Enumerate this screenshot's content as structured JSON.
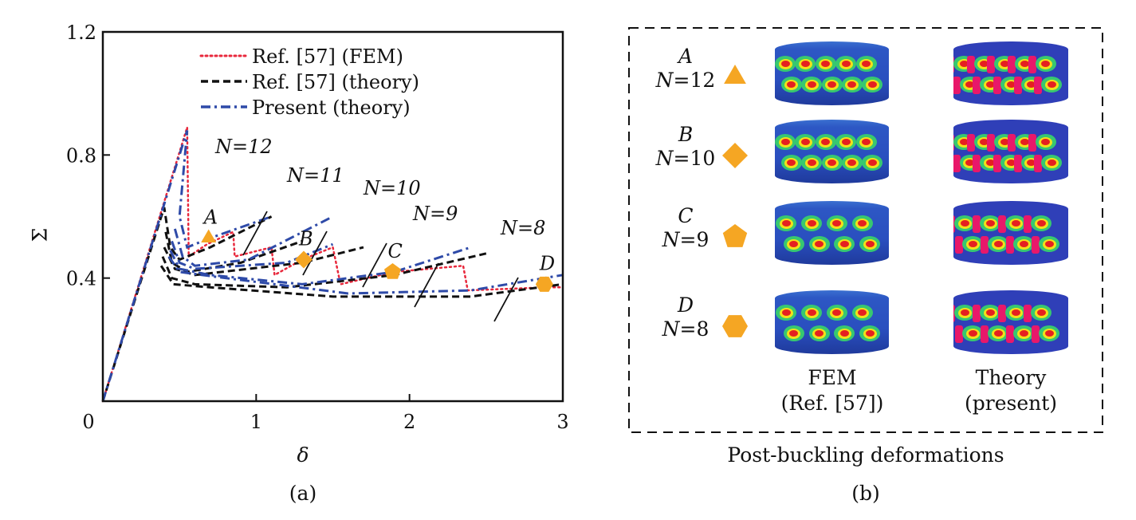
{
  "chart_data": {
    "type": "line",
    "panel_label": "(a)",
    "xlabel": "δ",
    "ylabel": "Σ",
    "xlim": [
      0,
      3
    ],
    "ylim": [
      0,
      1.2
    ],
    "xticks": [
      0,
      1,
      2,
      3
    ],
    "xtick_labels": [
      "0",
      "1",
      "2",
      "3"
    ],
    "yticks": [
      0.4,
      0.8,
      1.2
    ],
    "ytick_labels": [
      "0.4",
      "0.8",
      "1.2"
    ],
    "origin_label": "0",
    "grid": false,
    "legend_position": "top-center",
    "legend": [
      {
        "name": "Ref. [57] (FEM)",
        "color": "#e8283c",
        "style": "dotted"
      },
      {
        "name": "Ref. [57] (theory)",
        "color": "#111111",
        "style": "dashed"
      },
      {
        "name": "Present (theory)",
        "color": "#2e4aa8",
        "style": "dashdot"
      }
    ],
    "series": [
      {
        "name": "Ref. [57] (FEM)",
        "color": "#e8283c",
        "style": "dotted",
        "points": [
          [
            0,
            0
          ],
          [
            0.55,
            0.89
          ],
          [
            0.56,
            0.47
          ],
          [
            0.68,
            0.51
          ],
          [
            0.85,
            0.55
          ],
          [
            0.86,
            0.47
          ],
          [
            1.1,
            0.5
          ],
          [
            1.12,
            0.41
          ],
          [
            1.3,
            0.46
          ],
          [
            1.5,
            0.5
          ],
          [
            1.55,
            0.38
          ],
          [
            1.9,
            0.42
          ],
          [
            2.35,
            0.44
          ],
          [
            2.38,
            0.36
          ],
          [
            2.9,
            0.37
          ],
          [
            3.0,
            0.37
          ]
        ]
      },
      {
        "name": "Ref. [57] (theory) N=12",
        "color": "#111111",
        "style": "dashed",
        "points": [
          [
            0,
            0
          ],
          [
            0.4,
            0.63
          ],
          [
            0.44,
            0.5
          ],
          [
            0.5,
            0.46
          ],
          [
            0.7,
            0.5
          ],
          [
            1.1,
            0.6
          ]
        ]
      },
      {
        "name": "Ref. [57] (theory) N=11",
        "color": "#111111",
        "style": "dashed",
        "points": [
          [
            0.41,
            0.55
          ],
          [
            0.45,
            0.45
          ],
          [
            0.55,
            0.42
          ],
          [
            0.9,
            0.45
          ],
          [
            1.3,
            0.52
          ]
        ]
      },
      {
        "name": "Ref. [57] (theory) N=10",
        "color": "#111111",
        "style": "dashed",
        "points": [
          [
            0.4,
            0.5
          ],
          [
            0.47,
            0.43
          ],
          [
            0.6,
            0.41
          ],
          [
            1.3,
            0.45
          ],
          [
            1.7,
            0.5
          ]
        ]
      },
      {
        "name": "Ref. [57] (theory) N=9",
        "color": "#111111",
        "style": "dashed",
        "points": [
          [
            0.39,
            0.47
          ],
          [
            0.45,
            0.4
          ],
          [
            0.6,
            0.38
          ],
          [
            1.2,
            0.37
          ],
          [
            1.9,
            0.41
          ],
          [
            2.5,
            0.48
          ]
        ]
      },
      {
        "name": "Ref. [57] (theory) N=8",
        "color": "#111111",
        "style": "dashed",
        "points": [
          [
            0.38,
            0.44
          ],
          [
            0.46,
            0.38
          ],
          [
            0.7,
            0.37
          ],
          [
            1.5,
            0.34
          ],
          [
            2.4,
            0.34
          ],
          [
            3.0,
            0.38
          ]
        ]
      },
      {
        "name": "Present (theory) N=12",
        "color": "#2e4aa8",
        "style": "dashdot",
        "points": [
          [
            0,
            0
          ],
          [
            0.55,
            0.88
          ],
          [
            0.5,
            0.6
          ],
          [
            0.55,
            0.5
          ],
          [
            0.7,
            0.53
          ],
          [
            1.1,
            0.6
          ]
        ]
      },
      {
        "name": "Present (theory) N=11",
        "color": "#2e4aa8",
        "style": "dashdot",
        "points": [
          [
            0.47,
            0.56
          ],
          [
            0.52,
            0.47
          ],
          [
            0.6,
            0.44
          ],
          [
            0.95,
            0.46
          ],
          [
            1.5,
            0.6
          ]
        ]
      },
      {
        "name": "Present (theory) N=10",
        "color": "#2e4aa8",
        "style": "dashdot",
        "points": [
          [
            0.45,
            0.52
          ],
          [
            0.5,
            0.45
          ],
          [
            0.6,
            0.43
          ],
          [
            1.2,
            0.45
          ],
          [
            1.5,
            0.51
          ]
        ]
      },
      {
        "name": "Present (theory) N=9",
        "color": "#2e4aa8",
        "style": "dashdot",
        "points": [
          [
            0.44,
            0.49
          ],
          [
            0.5,
            0.43
          ],
          [
            0.7,
            0.41
          ],
          [
            1.3,
            0.38
          ],
          [
            1.9,
            0.42
          ],
          [
            2.4,
            0.5
          ]
        ]
      },
      {
        "name": "Present (theory) N=8",
        "color": "#2e4aa8",
        "style": "dashdot",
        "points": [
          [
            0.43,
            0.47
          ],
          [
            0.5,
            0.42
          ],
          [
            0.8,
            0.4
          ],
          [
            1.6,
            0.35
          ],
          [
            2.4,
            0.36
          ],
          [
            3.0,
            0.41
          ]
        ]
      }
    ],
    "markers": [
      {
        "label": "A",
        "shape": "triangle",
        "x": 0.69,
        "y": 0.53,
        "color": "#f5a623"
      },
      {
        "label": "B",
        "shape": "diamond",
        "x": 1.31,
        "y": 0.46,
        "color": "#f5a623"
      },
      {
        "label": "C",
        "shape": "pentagon",
        "x": 1.89,
        "y": 0.42,
        "color": "#f5a623"
      },
      {
        "label": "D",
        "shape": "hexagon",
        "x": 2.88,
        "y": 0.38,
        "color": "#f5a623"
      }
    ],
    "annotations": [
      {
        "text": "N=12",
        "x": 0.95,
        "y": 0.58
      },
      {
        "text": "N=11",
        "x": 1.25,
        "y": 0.54
      },
      {
        "text": "N=10",
        "x": 1.67,
        "y": 0.51
      },
      {
        "text": "N=9",
        "x": 1.9,
        "y": 0.43
      },
      {
        "text": "N=8",
        "x": 2.55,
        "y": 0.38
      }
    ]
  },
  "panel_b": {
    "panel_label": "(b)",
    "title": "Post-buckling deformations",
    "columns": [
      {
        "line1": "FEM",
        "line2": "(Ref. [57])"
      },
      {
        "line1": "Theory",
        "line2": "(present)"
      }
    ],
    "rows": [
      {
        "letter": "A",
        "n_label": "N",
        "n_value": "=12",
        "shape": "triangle"
      },
      {
        "letter": "B",
        "n_label": "N",
        "n_value": "=10",
        "shape": "diamond"
      },
      {
        "letter": "C",
        "n_label": "N",
        "n_value": "=9",
        "shape": "pentagon"
      },
      {
        "letter": "D",
        "n_label": "N",
        "n_value": "=8",
        "shape": "hexagon"
      }
    ],
    "marker_color": "#f5a623"
  }
}
